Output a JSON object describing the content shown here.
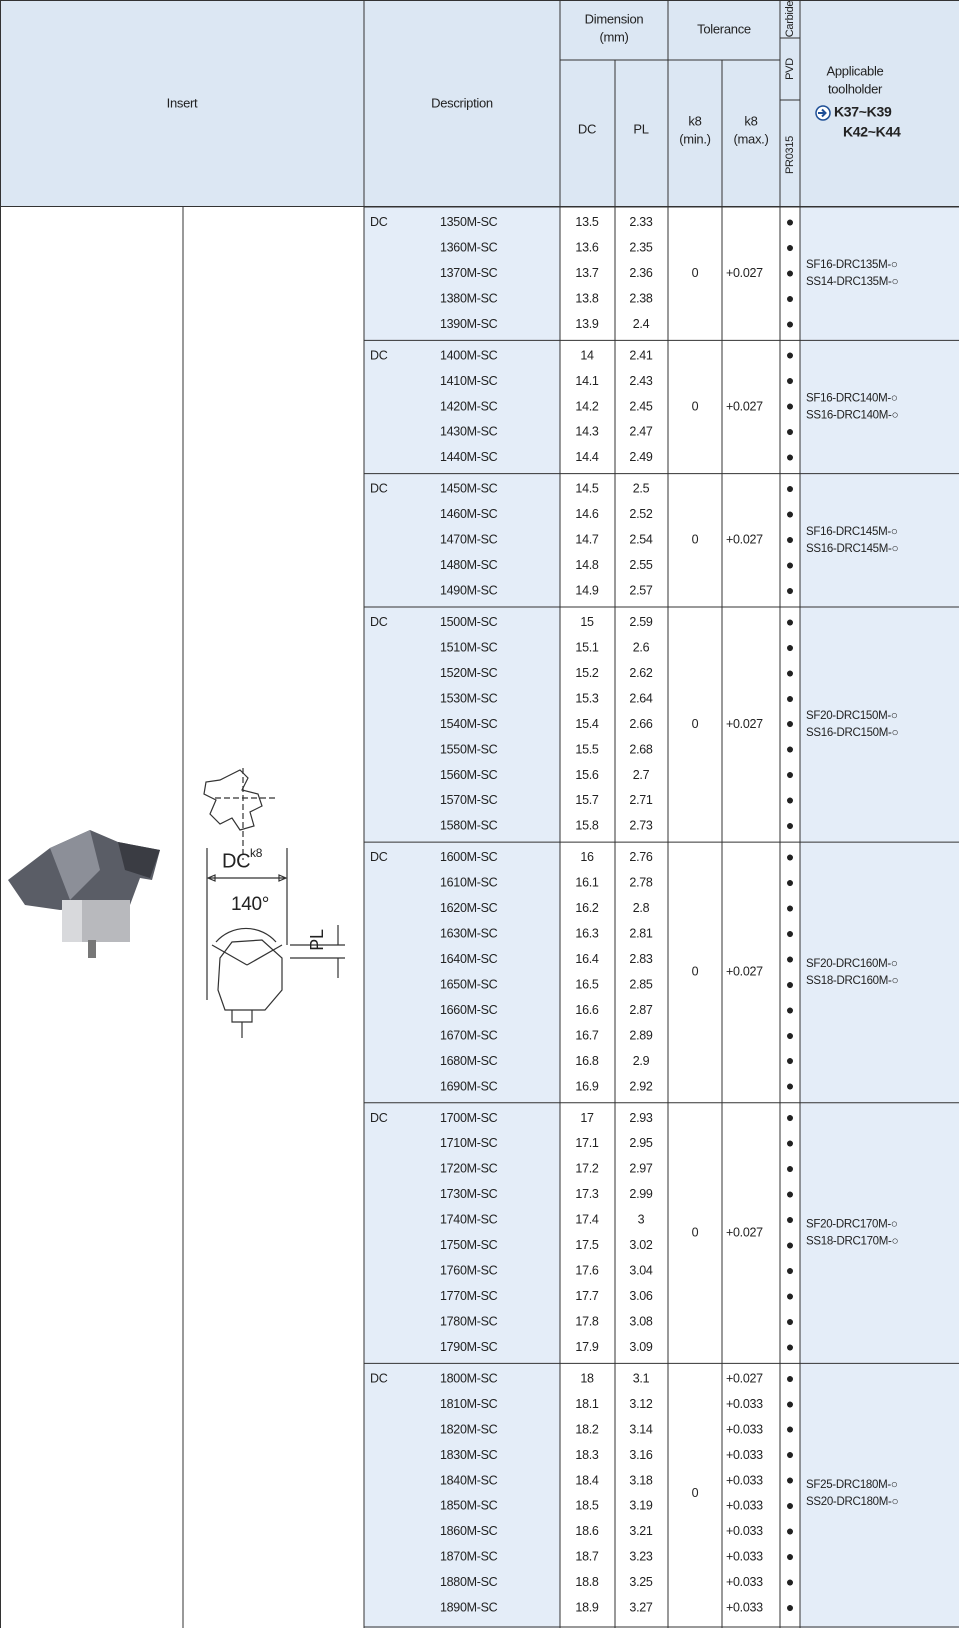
{
  "header": {
    "insert": "Insert",
    "description": "Description",
    "dimension": [
      "Dimension",
      "(mm)"
    ],
    "dc": "DC",
    "pl": "PL",
    "tolerance": "Tolerance",
    "k8_min": [
      "k8",
      "(min.)"
    ],
    "k8_max": [
      "k8",
      "(max.)"
    ],
    "carbide": "Carbide",
    "pvd": "PVD",
    "grade": "PR0315",
    "applicable": [
      "Applicable",
      "toolholder"
    ],
    "toolholder_pages": [
      "K37~K39",
      "K42~K44"
    ]
  },
  "drawing": {
    "dc": "DC",
    "dc_sup": "k8",
    "angle": "140°",
    "pl": "PL"
  },
  "groups": [
    {
      "dc_label": "DC",
      "k8_min": "0",
      "k8_max": "+0.027",
      "holders": [
        "SF16-DRC135M-○",
        "SS14-DRC135M-○"
      ],
      "rows": [
        [
          "1350M-SC",
          13.5,
          2.33,
          "●"
        ],
        [
          "1360M-SC",
          13.6,
          2.35,
          "●"
        ],
        [
          "1370M-SC",
          13.7,
          2.36,
          "●"
        ],
        [
          "1380M-SC",
          13.8,
          2.38,
          "●"
        ],
        [
          "1390M-SC",
          13.9,
          2.4,
          "●"
        ]
      ]
    },
    {
      "dc_label": "DC",
      "k8_min": "0",
      "k8_max": "+0.027",
      "holders": [
        "SF16-DRC140M-○",
        "SS16-DRC140M-○"
      ],
      "rows": [
        [
          "1400M-SC",
          14,
          2.41,
          "●"
        ],
        [
          "1410M-SC",
          14.1,
          2.43,
          "●"
        ],
        [
          "1420M-SC",
          14.2,
          2.45,
          "●"
        ],
        [
          "1430M-SC",
          14.3,
          2.47,
          "●"
        ],
        [
          "1440M-SC",
          14.4,
          2.49,
          "●"
        ]
      ]
    },
    {
      "dc_label": "DC",
      "k8_min": "0",
      "k8_max": "+0.027",
      "holders": [
        "SF16-DRC145M-○",
        "SS16-DRC145M-○"
      ],
      "rows": [
        [
          "1450M-SC",
          14.5,
          2.5,
          "●"
        ],
        [
          "1460M-SC",
          14.6,
          2.52,
          "●"
        ],
        [
          "1470M-SC",
          14.7,
          2.54,
          "●"
        ],
        [
          "1480M-SC",
          14.8,
          2.55,
          "●"
        ],
        [
          "1490M-SC",
          14.9,
          2.57,
          "●"
        ]
      ]
    },
    {
      "dc_label": "DC",
      "k8_min": "0",
      "k8_max": "+0.027",
      "holders": [
        "SF20-DRC150M-○",
        "SS16-DRC150M-○"
      ],
      "rows": [
        [
          "1500M-SC",
          15,
          2.59,
          "●"
        ],
        [
          "1510M-SC",
          15.1,
          2.6,
          "●"
        ],
        [
          "1520M-SC",
          15.2,
          2.62,
          "●"
        ],
        [
          "1530M-SC",
          15.3,
          2.64,
          "●"
        ],
        [
          "1540M-SC",
          15.4,
          2.66,
          "●"
        ],
        [
          "1550M-SC",
          15.5,
          2.68,
          "●"
        ],
        [
          "1560M-SC",
          15.6,
          2.7,
          "●"
        ],
        [
          "1570M-SC",
          15.7,
          2.71,
          "●"
        ],
        [
          "1580M-SC",
          15.8,
          2.73,
          "●"
        ]
      ]
    },
    {
      "dc_label": "DC",
      "k8_min": "0",
      "k8_max": "+0.027",
      "holders": [
        "SF20-DRC160M-○",
        "SS18-DRC160M-○"
      ],
      "rows": [
        [
          "1600M-SC",
          16,
          2.76,
          "●"
        ],
        [
          "1610M-SC",
          16.1,
          2.78,
          "●"
        ],
        [
          "1620M-SC",
          16.2,
          2.8,
          "●"
        ],
        [
          "1630M-SC",
          16.3,
          2.81,
          "●"
        ],
        [
          "1640M-SC",
          16.4,
          2.83,
          "●"
        ],
        [
          "1650M-SC",
          16.5,
          2.85,
          "●"
        ],
        [
          "1660M-SC",
          16.6,
          2.87,
          "●"
        ],
        [
          "1670M-SC",
          16.7,
          2.89,
          "●"
        ],
        [
          "1680M-SC",
          16.8,
          2.9,
          "●"
        ],
        [
          "1690M-SC",
          16.9,
          2.92,
          "●"
        ]
      ]
    },
    {
      "dc_label": "DC",
      "k8_min": "0",
      "k8_max": "+0.027",
      "holders": [
        "SF20-DRC170M-○",
        "SS18-DRC170M-○"
      ],
      "rows": [
        [
          "1700M-SC",
          17,
          2.93,
          "●"
        ],
        [
          "1710M-SC",
          17.1,
          2.95,
          "●"
        ],
        [
          "1720M-SC",
          17.2,
          2.97,
          "●"
        ],
        [
          "1730M-SC",
          17.3,
          2.99,
          "●"
        ],
        [
          "1740M-SC",
          17.4,
          3,
          "●"
        ],
        [
          "1750M-SC",
          17.5,
          3.02,
          "●"
        ],
        [
          "1760M-SC",
          17.6,
          3.04,
          "●"
        ],
        [
          "1770M-SC",
          17.7,
          3.06,
          "●"
        ],
        [
          "1780M-SC",
          17.8,
          3.08,
          "●"
        ],
        [
          "1790M-SC",
          17.9,
          3.09,
          "●"
        ]
      ]
    },
    {
      "dc_label": "DC",
      "k8_min": "0",
      "holders": [
        "SF25-DRC180M-○",
        "SS20-DRC180M-○"
      ],
      "rows": [
        [
          "1800M-SC",
          18,
          3.1,
          "+0.027",
          "●"
        ],
        [
          "1810M-SC",
          18.1,
          3.12,
          "+0.033",
          "●"
        ],
        [
          "1820M-SC",
          18.2,
          3.14,
          "+0.033",
          "●"
        ],
        [
          "1830M-SC",
          18.3,
          3.16,
          "+0.033",
          "●"
        ],
        [
          "1840M-SC",
          18.4,
          3.18,
          "+0.033",
          "●"
        ],
        [
          "1850M-SC",
          18.5,
          3.19,
          "+0.033",
          "●"
        ],
        [
          "1860M-SC",
          18.6,
          3.21,
          "+0.033",
          "●"
        ],
        [
          "1870M-SC",
          18.7,
          3.23,
          "+0.033",
          "●"
        ],
        [
          "1880M-SC",
          18.8,
          3.25,
          "+0.033",
          "●"
        ],
        [
          "1890M-SC",
          18.9,
          3.27,
          "+0.033",
          "●"
        ]
      ]
    }
  ]
}
